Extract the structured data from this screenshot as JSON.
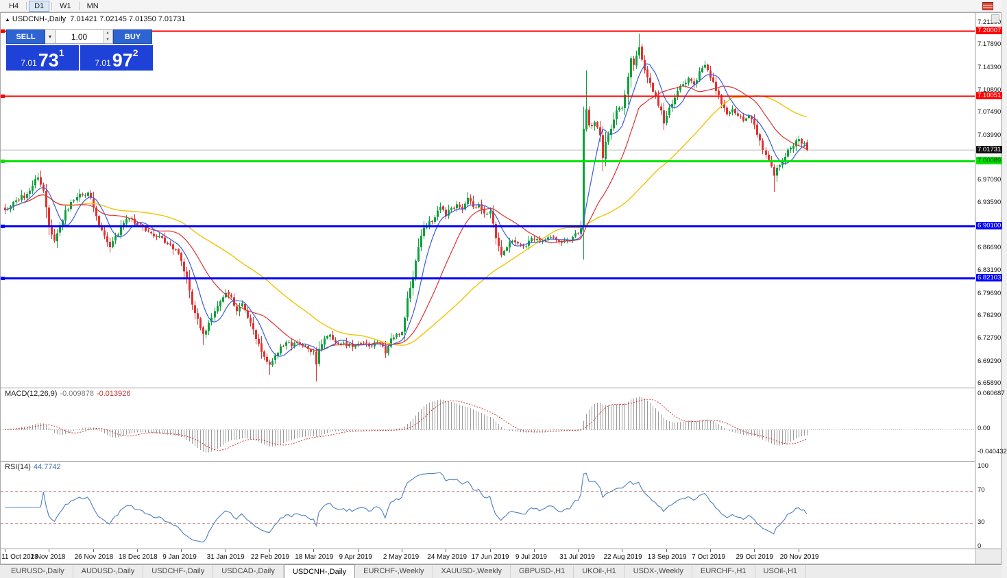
{
  "toolbar": {
    "timeframes": [
      {
        "label": "H4",
        "active": false
      },
      {
        "label": "D1",
        "active": true
      },
      {
        "label": "W1",
        "active": false
      },
      {
        "label": "MN",
        "active": false
      }
    ]
  },
  "icons": {
    "collapse": "▲",
    "caret_down": "▾",
    "spinner_up": "▴",
    "spinner_down": "▾"
  },
  "chart": {
    "symbol_period": "USDCNH-,Daily",
    "ohlc": "7.01421 7.02145 7.01350 7.01731"
  },
  "trade_panel": {
    "sell_label": "SELL",
    "buy_label": "BUY",
    "volume": "1.00",
    "bid_head": "7.01",
    "bid_pips": "73",
    "bid_point": "1",
    "ask_head": "7.01",
    "ask_pips": "97",
    "ask_point": "2"
  },
  "colors": {
    "candle_up": "#0ca13c",
    "candle_down": "#e03232",
    "ma_fast": "#3b5bdb",
    "ma_mid": "#e03131",
    "ma_slow": "#f0c400",
    "macd_hist": "#9a9a9a",
    "macd_signal": "#d03030",
    "rsi_line": "#4c7ebf",
    "current_line": "#bdbdbd"
  },
  "chart_data": {
    "type": "candlestick",
    "symbol": "USDCNH-",
    "timeframe": "Daily",
    "current_price": 7.01731,
    "current_price_label": "7.01731",
    "ohlc_current": {
      "open": 7.01421,
      "high": 7.02145,
      "low": 7.0135,
      "close": 7.01731
    },
    "num_candles": 292,
    "candles_per_label": 16,
    "price_axis_ticks": [
      "7.21290",
      "7.17890",
      "7.14390",
      "7.10890",
      "7.07490",
      "7.03990",
      "6.97090",
      "6.93590",
      "6.86690",
      "6.83190",
      "6.79690",
      "6.76290",
      "6.72790",
      "6.69290",
      "6.65890"
    ],
    "levels": [
      {
        "price": 7.20007,
        "label": "7.20007",
        "color": "#ff0000",
        "text": "#ffffff",
        "lw": 2
      },
      {
        "price": 7.10051,
        "label": "7.10051",
        "color": "#ff0000",
        "text": "#ffffff",
        "lw": 2
      },
      {
        "price": 7.00089,
        "label": "7.00089",
        "color": "#00e400",
        "text": "#003300",
        "lw": 3
      },
      {
        "price": 6.901,
        "label": "6.90100",
        "color": "#0000ff",
        "text": "#ffffff",
        "lw": 3
      },
      {
        "price": 6.82103,
        "label": "6.82103",
        "color": "#0000ff",
        "text": "#ffffff",
        "lw": 3
      }
    ],
    "x_axis_labels": [
      "11 Oct 2018",
      "2 Nov 2018",
      "26 Nov 2018",
      "18 Dec 2018",
      "9 Jan 2019",
      "31 Jan 2019",
      "22 Feb 2019",
      "18 Mar 2019",
      "9 Apr 2019",
      "2 May 2019",
      "24 May 2019",
      "17 Jun 2019",
      "9 Jul 2019",
      "31 Jul 2019",
      "22 Aug 2019",
      "13 Sep 2019",
      "7 Oct 2019",
      "29 Oct 2019",
      "20 Nov 2019"
    ],
    "waypoints": [
      [
        0,
        6.925
      ],
      [
        4,
        6.94
      ],
      [
        8,
        6.95
      ],
      [
        12,
        6.975
      ],
      [
        14,
        6.955
      ],
      [
        16,
        6.9
      ],
      [
        18,
        6.878
      ],
      [
        20,
        6.9
      ],
      [
        22,
        6.925
      ],
      [
        26,
        6.945
      ],
      [
        30,
        6.952
      ],
      [
        32,
        6.93
      ],
      [
        34,
        6.9
      ],
      [
        36,
        6.886
      ],
      [
        38,
        6.868
      ],
      [
        40,
        6.885
      ],
      [
        43,
        6.905
      ],
      [
        46,
        6.912
      ],
      [
        48,
        6.902
      ],
      [
        52,
        6.892
      ],
      [
        56,
        6.885
      ],
      [
        60,
        6.872
      ],
      [
        63,
        6.858
      ],
      [
        66,
        6.82
      ],
      [
        68,
        6.78
      ],
      [
        70,
        6.758
      ],
      [
        72,
        6.735
      ],
      [
        74,
        6.752
      ],
      [
        76,
        6.77
      ],
      [
        78,
        6.785
      ],
      [
        80,
        6.798
      ],
      [
        82,
        6.792
      ],
      [
        84,
        6.77
      ],
      [
        86,
        6.782
      ],
      [
        88,
        6.76
      ],
      [
        90,
        6.742
      ],
      [
        92,
        6.72
      ],
      [
        94,
        6.7
      ],
      [
        96,
        6.688
      ],
      [
        98,
        6.702
      ],
      [
        100,
        6.716
      ],
      [
        102,
        6.722
      ],
      [
        104,
        6.716
      ],
      [
        106,
        6.722
      ],
      [
        108,
        6.717
      ],
      [
        110,
        6.712
      ],
      [
        112,
        6.708
      ],
      [
        113,
        6.688
      ],
      [
        114,
        6.712
      ],
      [
        116,
        6.728
      ],
      [
        118,
        6.734
      ],
      [
        120,
        6.722
      ],
      [
        124,
        6.716
      ],
      [
        128,
        6.72
      ],
      [
        132,
        6.716
      ],
      [
        136,
        6.72
      ],
      [
        138,
        6.705
      ],
      [
        140,
        6.728
      ],
      [
        142,
        6.735
      ],
      [
        144,
        6.738
      ],
      [
        146,
        6.79
      ],
      [
        148,
        6.822
      ],
      [
        150,
        6.868
      ],
      [
        152,
        6.898
      ],
      [
        154,
        6.908
      ],
      [
        156,
        6.914
      ],
      [
        158,
        6.93
      ],
      [
        160,
        6.916
      ],
      [
        162,
        6.928
      ],
      [
        164,
        6.934
      ],
      [
        166,
        6.926
      ],
      [
        168,
        6.944
      ],
      [
        170,
        6.93
      ],
      [
        172,
        6.934
      ],
      [
        174,
        6.92
      ],
      [
        176,
        6.924
      ],
      [
        178,
        6.882
      ],
      [
        180,
        6.856
      ],
      [
        182,
        6.868
      ],
      [
        184,
        6.878
      ],
      [
        186,
        6.874
      ],
      [
        188,
        6.87
      ],
      [
        190,
        6.878
      ],
      [
        192,
        6.88
      ],
      [
        194,
        6.876
      ],
      [
        196,
        6.88
      ],
      [
        198,
        6.884
      ],
      [
        200,
        6.879
      ],
      [
        202,
        6.875
      ],
      [
        204,
        6.879
      ],
      [
        206,
        6.884
      ],
      [
        208,
        6.889
      ],
      [
        209,
        6.9
      ],
      [
        210,
        7.05
      ],
      [
        211,
        7.08
      ],
      [
        212,
        7.055
      ],
      [
        214,
        7.06
      ],
      [
        216,
        7.04
      ],
      [
        217,
        7.005
      ],
      [
        218,
        7.03
      ],
      [
        220,
        7.05
      ],
      [
        222,
        7.078
      ],
      [
        224,
        7.082
      ],
      [
        226,
        7.13
      ],
      [
        227,
        7.158
      ],
      [
        228,
        7.148
      ],
      [
        230,
        7.175
      ],
      [
        231,
        7.156
      ],
      [
        232,
        7.14
      ],
      [
        234,
        7.12
      ],
      [
        236,
        7.1
      ],
      [
        238,
        7.078
      ],
      [
        239,
        7.058
      ],
      [
        240,
        7.07
      ],
      [
        242,
        7.088
      ],
      [
        244,
        7.108
      ],
      [
        246,
        7.118
      ],
      [
        248,
        7.128
      ],
      [
        250,
        7.118
      ],
      [
        252,
        7.138
      ],
      [
        254,
        7.148
      ],
      [
        256,
        7.128
      ],
      [
        258,
        7.108
      ],
      [
        260,
        7.088
      ],
      [
        262,
        7.072
      ],
      [
        264,
        7.08
      ],
      [
        266,
        7.07
      ],
      [
        268,
        7.062
      ],
      [
        270,
        7.07
      ],
      [
        272,
        7.056
      ],
      [
        274,
        7.032
      ],
      [
        276,
        7.01
      ],
      [
        278,
        6.992
      ],
      [
        279,
        6.978
      ],
      [
        280,
        6.99
      ],
      [
        282,
        7.0
      ],
      [
        284,
        7.018
      ],
      [
        286,
        7.024
      ],
      [
        288,
        7.034
      ],
      [
        290,
        7.028
      ],
      [
        291,
        7.0173
      ]
    ],
    "wick_overrides": [
      [
        12,
        "h",
        6.982
      ],
      [
        72,
        "l",
        6.718
      ],
      [
        96,
        "l",
        6.672
      ],
      [
        113,
        "l",
        6.662
      ],
      [
        138,
        "l",
        6.698
      ],
      [
        211,
        "h",
        7.1397
      ],
      [
        217,
        "l",
        6.985
      ],
      [
        230,
        "h",
        7.196
      ],
      [
        239,
        "l",
        7.048
      ],
      [
        279,
        "l",
        6.953
      ]
    ],
    "indicators": {
      "macd": {
        "name": "MACD(12,26,9)",
        "value1": "-0.009878",
        "value2": "-0.013926",
        "axis": [
          {
            "value": 0.060687,
            "label": "0.060687"
          },
          {
            "value": 0,
            "label": "0.00"
          },
          {
            "value": -0.040432,
            "label": "-0.040432"
          }
        ]
      },
      "rsi": {
        "name": "RSI(14)",
        "value": "44.7742",
        "levels": [
          70,
          30
        ],
        "axis": [
          {
            "value": 100,
            "label": "100"
          },
          {
            "value": 70,
            "label": "70"
          },
          {
            "value": 30,
            "label": "30"
          },
          {
            "value": 0,
            "label": "0"
          }
        ]
      }
    }
  },
  "tabs": {
    "active_index": 4,
    "items": [
      "EURUSD-,Daily",
      "AUDUSD-,Daily",
      "USDCHF-,Daily",
      "USDCAD-,Daily",
      "USDCNH-,Daily",
      "EURCHF-,Weekly",
      "XAUUSD-,Weekly",
      "GBPUSD-,H1",
      "UKOil-,H1",
      "USDX-,Weekly",
      "EURCHF-,H1",
      "USOil-,H1"
    ]
  }
}
